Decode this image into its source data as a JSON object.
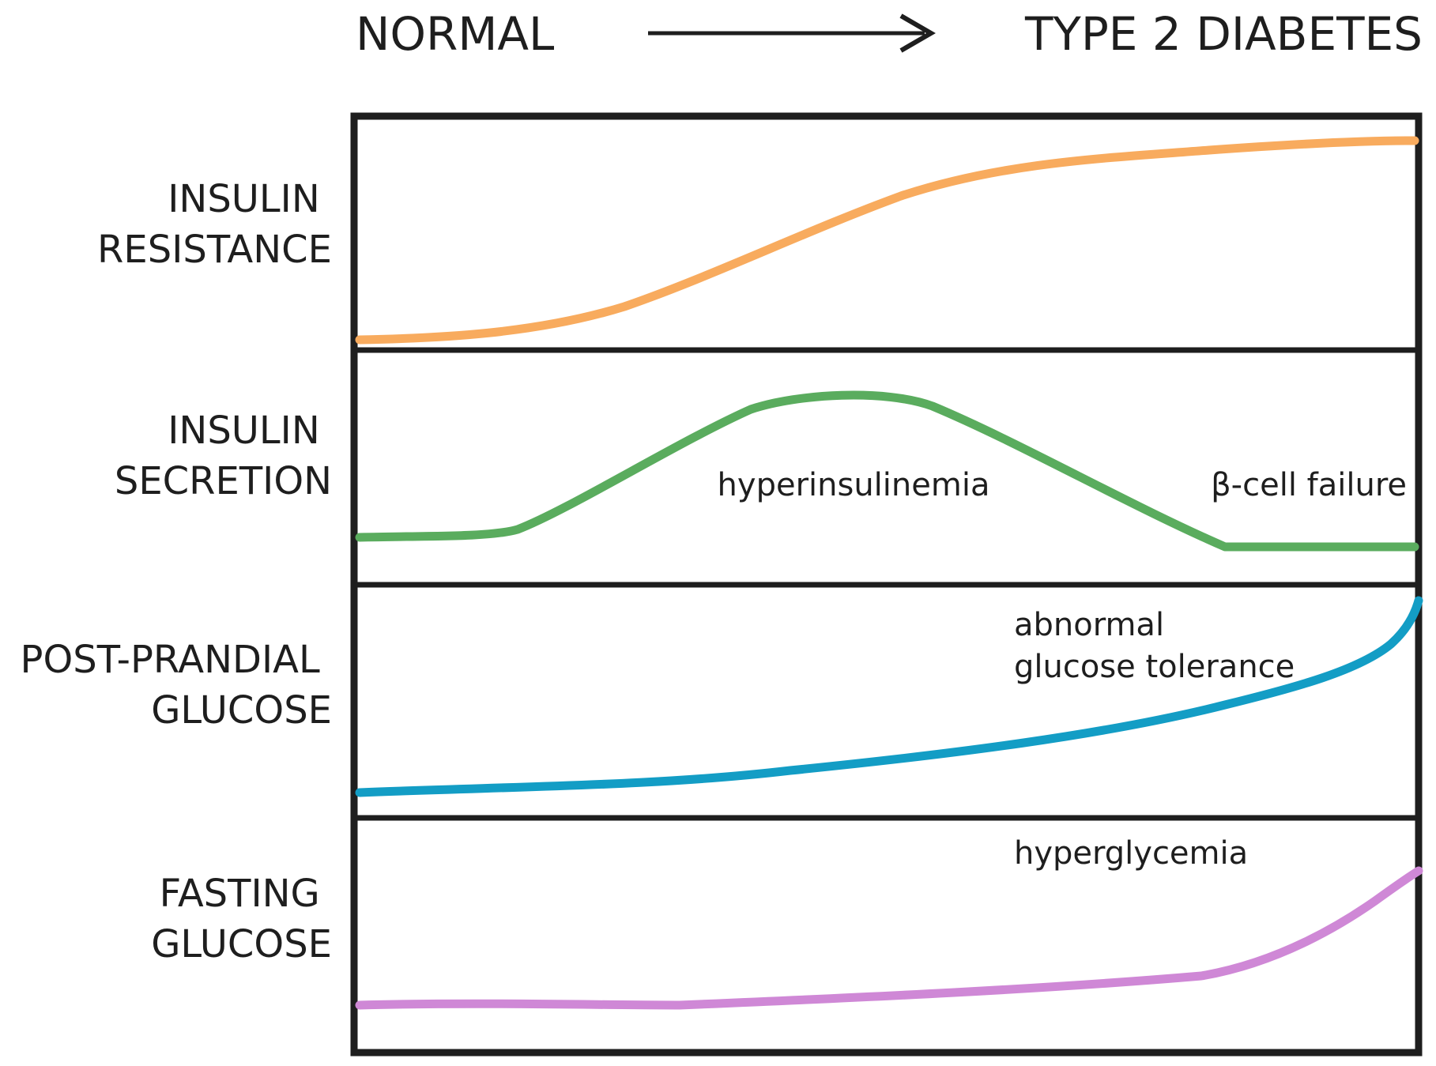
{
  "header": {
    "start_label": "NORMAL",
    "end_label": "TYPE 2 DIABETES"
  },
  "panels": [
    {
      "id": "insulin-resistance",
      "label_lines": [
        "INSULIN",
        "RESISTANCE"
      ],
      "color": "#f8ab5e",
      "annotations": []
    },
    {
      "id": "insulin-secretion",
      "label_lines": [
        "INSULIN",
        "SECRETION"
      ],
      "color": "#5aac5e",
      "annotations": [
        "hyperinsulinemia",
        "β-cell failure"
      ]
    },
    {
      "id": "post-prandial-glucose",
      "label_lines": [
        "POST-PRANDIAL",
        "GLUCOSE"
      ],
      "color": "#139dc5",
      "annotations": [
        "abnormal",
        "glucose tolerance"
      ]
    },
    {
      "id": "fasting-glucose",
      "label_lines": [
        "FASTING",
        "GLUCOSE"
      ],
      "color": "#cf88d6",
      "annotations": [
        "hyperglycemia"
      ]
    }
  ]
}
